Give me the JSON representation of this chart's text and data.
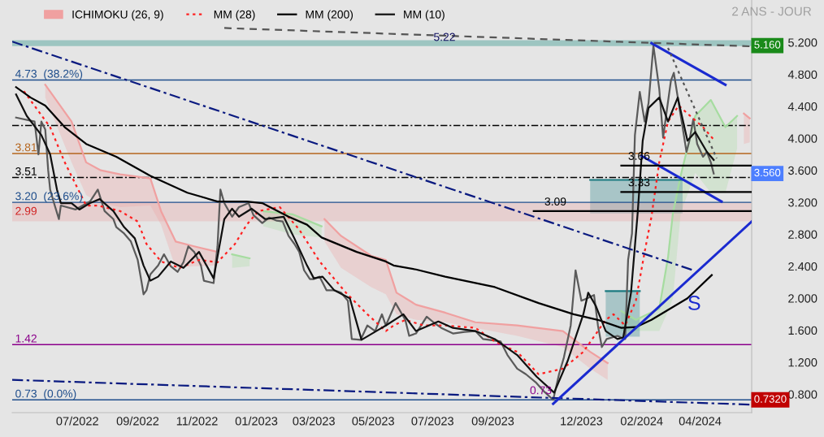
{
  "chart_data": {
    "type": "line",
    "xlim": [
      "2022-04-25",
      "2024-05-24"
    ],
    "ylim": [
      0.57,
      5.73
    ],
    "xticks": [
      {
        "value": "2022-07-01",
        "label": "07/2022"
      },
      {
        "value": "2022-09-01",
        "label": "09/2022"
      },
      {
        "value": "2022-11-01",
        "label": "11/2022"
      },
      {
        "value": "2023-01-01",
        "label": "01/2023"
      },
      {
        "value": "2023-03-01",
        "label": "03/2023"
      },
      {
        "value": "2023-05-01",
        "label": "05/2023"
      },
      {
        "value": "2023-07-01",
        "label": "07/2023"
      },
      {
        "value": "2023-09-01",
        "label": "09/2023"
      },
      {
        "value": "2023-12-01",
        "label": "12/2023"
      },
      {
        "value": "2024-02-01",
        "label": "02/2024"
      },
      {
        "value": "2024-04-01",
        "label": "04/2024"
      }
    ],
    "yticks": [
      {
        "value": 0.8,
        "label": "0.800"
      },
      {
        "value": 1.2,
        "label": "1.200"
      },
      {
        "value": 1.6,
        "label": "1.600"
      },
      {
        "value": 2.0,
        "label": "2.000"
      },
      {
        "value": 2.4,
        "label": "2.400"
      },
      {
        "value": 2.8,
        "label": "2.800"
      },
      {
        "value": 3.2,
        "label": "3.200"
      },
      {
        "value": 3.6,
        "label": "3.600"
      },
      {
        "value": 4.0,
        "label": "4.000"
      },
      {
        "value": 4.4,
        "label": "4.400"
      },
      {
        "value": 4.8,
        "label": "4.800"
      },
      {
        "value": 5.2,
        "label": "5.200"
      }
    ],
    "legend": "top left",
    "series": [
      {
        "name": "ICHIMOKU (26, 9)",
        "color": "#f0a0a0",
        "line_style": "solid",
        "upper": [
          4.67,
          4.21,
          3.7,
          3.6,
          3.55,
          3.5,
          3.09,
          2.71,
          2.65,
          2.58,
          null,
          2.99,
          2.78,
          2.53,
          2.48,
          2.07,
          1.92,
          1.82,
          1.7,
          1.66,
          1.59,
          1.33,
          1.19,
          null,
          4.31,
          4.25
        ],
        "x": [
          "2022-05-29",
          "2022-06-25",
          "2022-07-10",
          "2022-07-25",
          "2022-08-14",
          "2022-09-14",
          "2022-09-25",
          "2022-10-10",
          "2022-10-29",
          "2022-11-22",
          "2022-12-10",
          "2023-03-12",
          "2023-03-29",
          "2023-04-29",
          "2023-05-14",
          "2023-05-25",
          "2023-06-14",
          "2023-07-14",
          "2023-08-14",
          "2023-09-26",
          "2023-11-12",
          "2023-12-10",
          "2023-12-28",
          "2024-01-30",
          "2024-05-16",
          "2024-05-22"
        ],
        "values": [
          4.67,
          4.21,
          3.7,
          3.6,
          3.55,
          3.5,
          3.09,
          2.71,
          2.65,
          2.58,
          null,
          2.99,
          2.78,
          2.53,
          2.48,
          2.07,
          1.92,
          1.82,
          1.7,
          1.66,
          1.59,
          1.33,
          1.19,
          null,
          4.31,
          4.25
        ],
        "lower": [
          4.51,
          3.7,
          3.29,
          3.19,
          3.14,
          3.16,
          2.92,
          2.38,
          2.4,
          2.41,
          null,
          2.71,
          2.38,
          2.14,
          2.05,
          1.8,
          1.73,
          1.7,
          1.63,
          1.53,
          1.39,
          1.12,
          0.98,
          null,
          3.93,
          3.95
        ]
      },
      {
        "color": "#a6dca0",
        "line_style": "solid",
        "upper": [
          2.55,
          2.5,
          null,
          3.09,
          3.05,
          2.9,
          null,
          1.84,
          1.73,
          1.87,
          2.51,
          3.06,
          3.53,
          4.28,
          4.48,
          4.14,
          4.28
        ],
        "x": [
          "2022-12-07",
          "2022-12-25",
          "2023-01-03",
          "2023-01-08",
          "2023-02-07",
          "2023-03-09",
          "2023-05-10",
          "2024-01-11",
          "2024-01-26",
          "2024-02-19",
          "2024-02-28",
          "2024-03-04",
          "2024-03-12",
          "2024-03-27",
          "2024-04-12",
          "2024-04-27",
          "2024-05-09"
        ],
        "values": [
          2.55,
          2.5,
          null,
          3.09,
          3.05,
          2.9,
          null,
          1.84,
          1.73,
          1.87,
          2.51,
          3.06,
          3.53,
          4.28,
          4.48,
          4.14,
          4.28
        ],
        "lower": [
          2.38,
          2.4,
          null,
          2.9,
          2.8,
          2.76,
          null,
          1.59,
          1.59,
          1.59,
          1.84,
          2.0,
          3.06,
          3.57,
          3.32,
          3.32,
          3.87
        ]
      },
      {
        "color": "#5a5a5a",
        "line_style": "solid",
        "x": [
          "2022-04-29",
          "2022-05-18",
          "2022-05-22",
          "2022-05-25",
          "2022-05-29",
          "2022-06-01",
          "2022-06-03",
          "2022-06-07",
          "2022-06-12",
          "2022-06-14",
          "2022-06-29",
          "2022-07-14",
          "2022-07-22",
          "2022-07-29",
          "2022-08-07",
          "2022-08-10",
          "2022-08-18",
          "2022-08-25",
          "2022-09-01",
          "2022-09-05",
          "2022-09-07",
          "2022-09-10",
          "2022-09-14",
          "2022-09-22",
          "2022-09-28",
          "2022-10-05",
          "2022-10-12",
          "2022-10-18",
          "2022-10-23",
          "2022-10-29",
          "2022-11-05",
          "2022-11-08",
          "2022-11-18",
          "2022-11-22",
          "2022-11-25",
          "2022-11-29",
          "2022-12-07",
          "2022-12-14",
          "2022-12-24",
          "2022-12-29",
          "2023-01-07",
          "2023-01-14",
          "2023-01-22",
          "2023-01-28",
          "2023-02-03",
          "2023-02-09",
          "2023-02-14",
          "2023-02-19",
          "2023-02-25",
          "2023-03-01",
          "2023-03-07",
          "2023-03-14",
          "2023-03-22",
          "2023-03-29",
          "2023-04-05",
          "2023-04-09",
          "2023-04-18",
          "2023-04-25",
          "2023-05-03",
          "2023-05-10",
          "2023-05-14",
          "2023-05-24",
          "2023-06-03",
          "2023-06-07",
          "2023-06-14",
          "2023-06-25",
          "2023-07-03",
          "2023-07-10",
          "2023-07-22",
          "2023-08-03",
          "2023-08-14",
          "2023-08-22",
          "2023-09-09",
          "2023-09-16",
          "2023-09-26",
          "2023-10-05",
          "2023-10-15",
          "2023-10-24",
          "2023-11-02",
          "2023-11-08",
          "2023-11-13",
          "2023-11-20",
          "2023-11-25",
          "2023-12-01",
          "2023-12-07",
          "2023-12-14",
          "2023-12-18",
          "2023-12-22",
          "2023-12-27",
          "2024-01-07",
          "2024-01-15",
          "2024-01-18",
          "2024-01-22",
          "2024-01-25",
          "2024-01-30",
          "2024-02-04",
          "2024-02-08",
          "2024-02-13",
          "2024-02-19",
          "2024-02-23",
          "2024-02-26",
          "2024-03-02",
          "2024-03-05",
          "2024-03-10",
          "2024-03-14",
          "2024-03-18",
          "2024-03-21",
          "2024-03-25",
          "2024-03-29",
          "2024-04-04",
          "2024-04-08",
          "2024-04-12",
          "2024-04-15"
        ],
        "values": [
          4.26,
          4.21,
          3.8,
          4.21,
          4.11,
          3.6,
          3.36,
          3.19,
          2.99,
          3.16,
          3.11,
          3.21,
          3.36,
          3.09,
          2.99,
          2.89,
          2.81,
          2.71,
          2.48,
          2.2,
          2.05,
          2.1,
          2.3,
          2.41,
          2.55,
          2.4,
          2.33,
          2.45,
          2.65,
          2.58,
          2.41,
          2.22,
          2.19,
          2.65,
          3.36,
          3.19,
          3.02,
          3.14,
          3.19,
          3.04,
          2.94,
          3.01,
          2.97,
          2.96,
          2.78,
          2.68,
          2.58,
          2.35,
          2.24,
          2.24,
          2.27,
          2.1,
          2.1,
          2.07,
          1.97,
          1.49,
          1.48,
          1.66,
          1.59,
          1.8,
          1.66,
          1.94,
          1.73,
          1.53,
          1.56,
          1.77,
          1.69,
          1.63,
          1.56,
          1.58,
          1.59,
          1.49,
          1.46,
          1.29,
          1.12,
          1.05,
          0.95,
          0.83,
          0.73,
          1.05,
          1.26,
          1.66,
          2.35,
          1.97,
          2.0,
          2.04,
          1.66,
          1.39,
          1.49,
          1.53,
          1.49,
          2.48,
          2.81,
          4.04,
          4.58,
          4.21,
          4.44,
          5.16,
          4.62,
          4.01,
          4.28,
          4.72,
          4.82,
          4.44,
          4.14,
          3.83,
          3.97,
          4.24,
          3.93,
          3.77,
          3.83,
          3.7,
          3.56
        ]
      },
      {
        "name": "MM (28)",
        "color": "#ff2020",
        "line_style": "dotted",
        "x": [
          "2022-05-07",
          "2022-06-03",
          "2022-06-18",
          "2022-06-29",
          "2022-07-10",
          "2022-07-22",
          "2022-08-14",
          "2022-09-01",
          "2022-09-10",
          "2022-09-25",
          "2022-10-14",
          "2022-11-03",
          "2022-11-22",
          "2022-12-10",
          "2022-12-22",
          "2023-01-03",
          "2023-01-25",
          "2023-02-14",
          "2023-03-07",
          "2023-04-03",
          "2023-04-25",
          "2023-05-14",
          "2023-05-22",
          "2023-06-03",
          "2023-06-22",
          "2023-07-14",
          "2023-08-14",
          "2023-09-03",
          "2023-09-26",
          "2023-10-18",
          "2023-11-12",
          "2023-12-03",
          "2023-12-26",
          "2024-01-03",
          "2024-01-15",
          "2024-01-26",
          "2024-02-04",
          "2024-02-11",
          "2024-02-19",
          "2024-02-28",
          "2024-03-10",
          "2024-03-19",
          "2024-04-04",
          "2024-04-16"
        ],
        "values": [
          4.59,
          4.14,
          3.7,
          3.43,
          3.16,
          3.16,
          3.09,
          2.96,
          2.68,
          2.46,
          2.38,
          2.48,
          2.45,
          2.68,
          2.92,
          3.09,
          3.14,
          2.86,
          2.46,
          2.07,
          1.8,
          1.59,
          1.66,
          1.73,
          1.66,
          1.66,
          1.63,
          1.46,
          1.33,
          1.05,
          1.12,
          1.33,
          1.73,
          1.8,
          1.66,
          1.97,
          2.58,
          3.02,
          3.7,
          4.21,
          4.41,
          4.31,
          4.14,
          3.97
        ]
      },
      {
        "name": "MM (200)",
        "color": "#000000",
        "line_style": "solid",
        "x": [
          "2022-04-29",
          "2022-05-14",
          "2022-05-29",
          "2022-06-18",
          "2022-07-10",
          "2022-08-10",
          "2022-09-14",
          "2022-10-22",
          "2022-11-22",
          "2022-12-22",
          "2023-01-07",
          "2023-02-03",
          "2023-02-22",
          "2023-03-09",
          "2023-04-14",
          "2023-05-14",
          "2023-05-22",
          "2023-06-14",
          "2023-07-14",
          "2023-09-03",
          "2023-10-18",
          "2023-11-23",
          "2023-12-18",
          "2024-01-11",
          "2024-01-26",
          "2024-02-11",
          "2024-02-26",
          "2024-03-19",
          "2024-04-13"
        ],
        "values": [
          4.64,
          4.51,
          4.41,
          4.14,
          3.93,
          3.77,
          3.53,
          3.32,
          3.21,
          3.21,
          3.19,
          3.02,
          2.92,
          2.76,
          2.58,
          2.46,
          2.41,
          2.36,
          2.27,
          2.14,
          1.94,
          1.8,
          1.73,
          1.63,
          1.64,
          1.73,
          1.84,
          2.0,
          2.29
        ]
      },
      {
        "name": "MM (10)",
        "color": "#101010",
        "line_style": "solid",
        "x": [
          "2022-04-29",
          "2022-05-10",
          "2022-05-25",
          "2022-06-03",
          "2022-06-10",
          "2022-06-14",
          "2022-06-25",
          "2022-07-03",
          "2022-07-14",
          "2022-07-24",
          "2022-08-07",
          "2022-08-18",
          "2022-08-29",
          "2022-09-07",
          "2022-09-14",
          "2022-09-22",
          "2022-10-05",
          "2022-10-18",
          "2022-11-03",
          "2022-11-18",
          "2022-11-29",
          "2022-12-07",
          "2022-12-14",
          "2022-12-27",
          "2023-01-10",
          "2023-01-29",
          "2023-02-09",
          "2023-02-22",
          "2023-03-01",
          "2023-03-10",
          "2023-03-22",
          "2023-04-07",
          "2023-04-19",
          "2023-05-07",
          "2023-05-14",
          "2023-06-01",
          "2023-06-14",
          "2023-07-07",
          "2023-07-22",
          "2023-08-14",
          "2023-09-03",
          "2023-09-26",
          "2023-10-16",
          "2023-11-03",
          "2023-11-17",
          "2023-12-03",
          "2023-12-08",
          "2023-12-16",
          "2023-12-26",
          "2024-01-07",
          "2024-01-13",
          "2024-01-21",
          "2024-01-28",
          "2024-02-02",
          "2024-02-08",
          "2024-02-19",
          "2024-02-28",
          "2024-03-09",
          "2024-03-19",
          "2024-03-27",
          "2024-04-08",
          "2024-04-15"
        ],
        "values": [
          4.55,
          4.28,
          4.04,
          3.8,
          3.36,
          3.19,
          3.19,
          3.11,
          3.19,
          3.24,
          3.09,
          2.89,
          2.75,
          2.41,
          2.22,
          2.27,
          2.46,
          2.38,
          2.58,
          2.25,
          2.99,
          3.12,
          3.02,
          3.12,
          2.99,
          3.02,
          2.75,
          2.41,
          2.25,
          2.27,
          2.1,
          2.0,
          1.48,
          1.61,
          1.66,
          1.8,
          1.59,
          1.71,
          1.63,
          1.59,
          1.49,
          1.29,
          1.02,
          0.82,
          1.22,
          1.8,
          2.07,
          1.9,
          1.59,
          1.49,
          1.51,
          2.07,
          3.09,
          3.97,
          4.38,
          4.51,
          4.21,
          4.51,
          3.97,
          4.08,
          3.83,
          3.73
        ]
      },
      {
        "color": "#0a1a80",
        "line_style": "dashdot",
        "x": [
          "2022-04-25",
          "2024-03-25"
        ],
        "values": [
          5.21,
          2.35
        ]
      },
      {
        "color": "#0a1a80",
        "line_style": "dashdot",
        "x": [
          "2022-04-25",
          "2024-05-24"
        ],
        "values": [
          0.98,
          0.67
        ]
      },
      {
        "color": "#1a2ad0",
        "line_style": "solid",
        "x": [
          "2023-11-02",
          "2024-05-24"
        ],
        "values": [
          0.68,
          2.96
        ]
      },
      {
        "color": "#1a2ad0",
        "line_style": "solid",
        "x": [
          "2024-02-11",
          "2024-04-27"
        ],
        "values": [
          5.19,
          4.67
        ]
      },
      {
        "color": "#1a2ad0",
        "line_style": "solid",
        "x": [
          "2024-02-01",
          "2024-04-23"
        ],
        "values": [
          3.78,
          3.21
        ]
      },
      {
        "color": "#555555",
        "line_style": "dashed",
        "x": [
          "2022-11-29",
          "2024-05-24"
        ],
        "values": [
          5.38,
          5.15
        ]
      },
      {
        "color": "#555555",
        "line_style": "dotted",
        "x": [
          "2024-02-28",
          "2024-04-18"
        ],
        "values": [
          5.13,
          3.75
        ]
      },
      {
        "color": "#000000",
        "line_style": "solid",
        "x": [
          "2024-01-11",
          "2024-05-24"
        ],
        "values": [
          3.66,
          3.66
        ]
      },
      {
        "color": "#000000",
        "line_style": "solid",
        "x": [
          "2024-01-11",
          "2024-05-24"
        ],
        "values": [
          3.33,
          3.33
        ]
      },
      {
        "color": "#000000",
        "line_style": "solid",
        "x": [
          "2023-10-13",
          "2024-05-24"
        ],
        "values": [
          3.09,
          3.09
        ]
      },
      {
        "color": "#1a7a80",
        "line_style": "solid",
        "x": [
          "2023-12-10",
          "2024-03-14"
        ],
        "values": [
          3.48,
          3.48
        ],
        "lower": [
          3.06,
          3.06
        ],
        "upper": [
          3.48,
          3.48
        ]
      },
      {
        "color": "#1a7a80",
        "line_style": "solid",
        "x": [
          "2023-12-26",
          "2024-01-30"
        ],
        "values": [
          2.09,
          2.09
        ],
        "lower": [
          1.52,
          1.52
        ],
        "upper": [
          2.09,
          2.09
        ]
      }
    ],
    "ref_lines": [
      {
        "axis": "y",
        "value": 4.73,
        "label": "4.73  (38.2%)",
        "color": "#1f4e8c",
        "line_style": "solid"
      },
      {
        "axis": "y",
        "value": 4.16,
        "color": "#000000",
        "line_style": "dashdot"
      },
      {
        "axis": "y",
        "value": 3.81,
        "label": "3.81",
        "color": "#b5651d",
        "line_style": "solid"
      },
      {
        "axis": "y",
        "value": 3.51,
        "label": "3.51",
        "color": "#000000",
        "line_style": "dashdot"
      },
      {
        "axis": "y",
        "value": 3.2,
        "label": "3.20  (23.6%)",
        "color": "#1f4e8c",
        "line_style": "solid"
      },
      {
        "axis": "y",
        "value": 1.42,
        "label": "1.42",
        "color": "#8b008b",
        "line_style": "solid"
      },
      {
        "axis": "y",
        "value": 0.73,
        "label": "0.73  (0.0%)",
        "color": "#1f4e8c",
        "line_style": "solid"
      }
    ],
    "bands": [
      {
        "axis": "y",
        "from": 2.97,
        "to": 3.19,
        "label": "2.99",
        "color": "#e8a8a8"
      },
      {
        "axis": "y",
        "from": 5.16,
        "to": 5.22,
        "label": "5.22",
        "color": "#1a8a80"
      }
    ],
    "annotations": [
      {
        "text": "3.66",
        "x": "2024-01-18",
        "y": 3.66
      },
      {
        "text": "3.33",
        "x": "2024-01-18",
        "y": 3.33
      },
      {
        "text": "3.09",
        "x": "2023-10-24",
        "y": 3.09
      },
      {
        "text": "0.73",
        "x": "2023-10-09",
        "y": 0.73
      },
      {
        "text": "S",
        "x": "2024-03-13",
        "y": 1.92
      },
      {
        "text": "5.160",
        "x": "2024-05-24",
        "y": 5.16
      },
      {
        "text": "3.560",
        "x": "2024-05-24",
        "y": 3.56
      },
      {
        "text": "0.7320",
        "x": "2024-05-24",
        "y": 0.73
      },
      "2 ANS - JOUR"
    ]
  }
}
